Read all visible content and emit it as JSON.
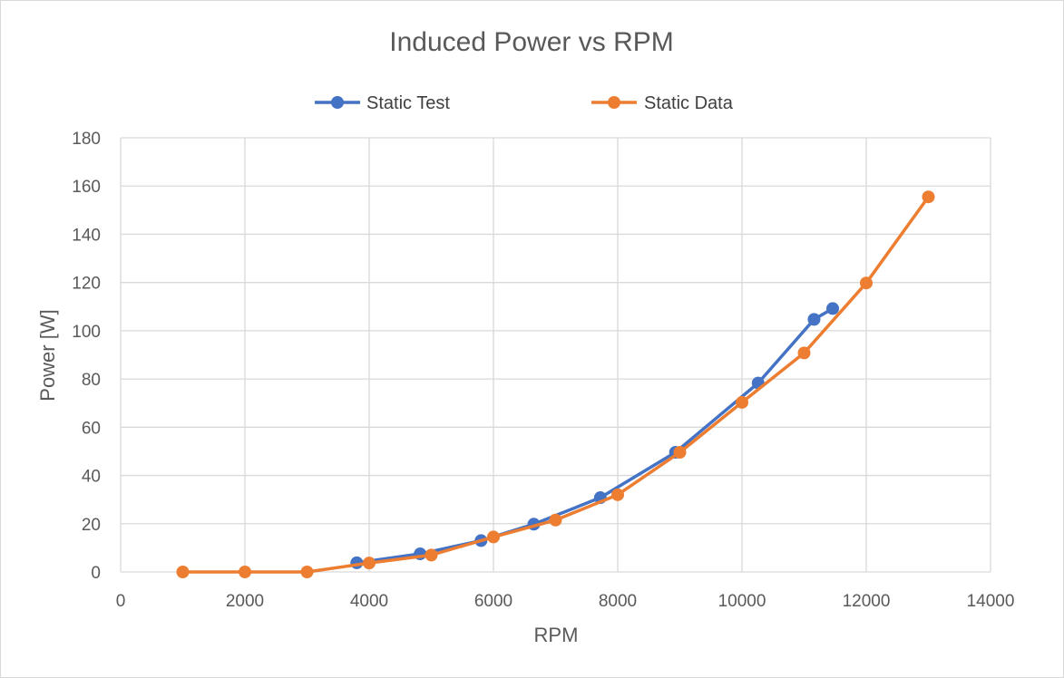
{
  "chart_data": {
    "type": "line",
    "title": "Induced Power vs RPM",
    "xlabel": "RPM",
    "ylabel": "Power [W]",
    "xlim": [
      0,
      14000
    ],
    "ylim": [
      0,
      180
    ],
    "xticks": [
      0,
      2000,
      4000,
      6000,
      8000,
      10000,
      12000,
      14000
    ],
    "yticks": [
      0,
      20,
      40,
      60,
      80,
      100,
      120,
      140,
      160,
      180
    ],
    "grid": true,
    "legend_position": "top",
    "series": [
      {
        "name": "Static Test",
        "color": "#4472c4",
        "marker": "circle",
        "x": [
          3800,
          4820,
          5800,
          6650,
          7720,
          8930,
          10260,
          11160,
          11460
        ],
        "y": [
          3.8,
          7.5,
          13,
          19.8,
          30.8,
          49.6,
          78.3,
          104.7,
          109.2
        ]
      },
      {
        "name": "Static Data",
        "color": "#ed7d31",
        "marker": "circle",
        "x": [
          1000,
          2000,
          3000,
          4000,
          5000,
          6000,
          7000,
          8000,
          9000,
          10000,
          11000,
          12000,
          13000
        ],
        "y": [
          0,
          0,
          0,
          3.7,
          7,
          14.5,
          21.5,
          32,
          49.6,
          70.3,
          90.8,
          119.8,
          155.5
        ]
      }
    ]
  }
}
